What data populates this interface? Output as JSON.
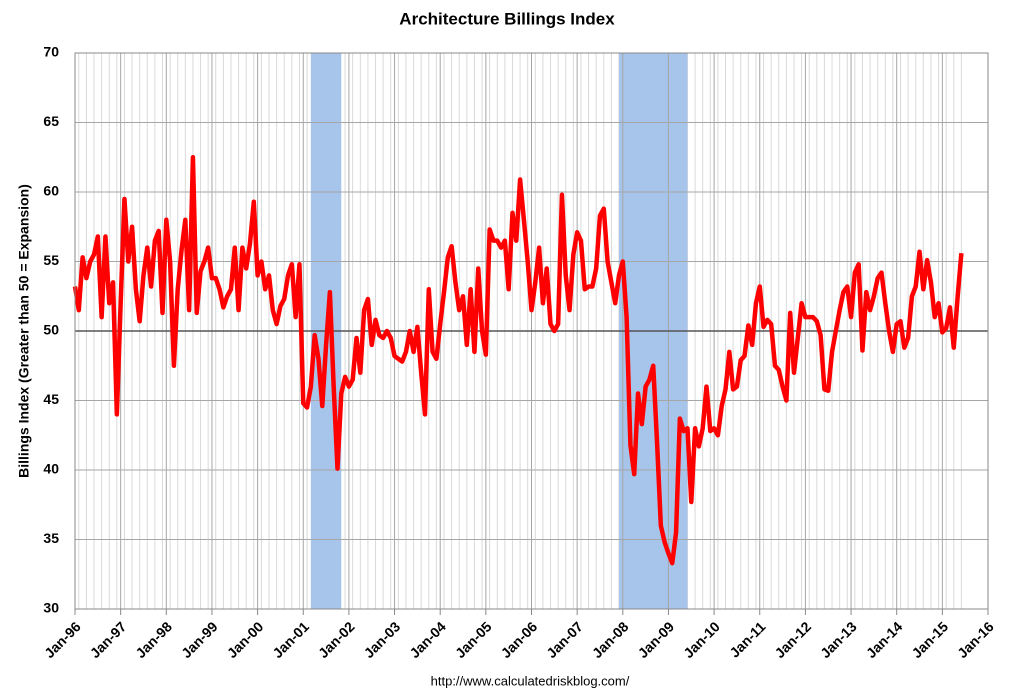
{
  "chart_data": {
    "type": "line",
    "title": "Architecture Billings Index",
    "y_label": "Billings Index (Greater than 50 = Expansion)",
    "source": "http://www.calculatedriskblog.com/",
    "x": [
      "1996-01",
      "1996-02",
      "1996-03",
      "1996-04",
      "1996-05",
      "1996-06",
      "1996-07",
      "1996-08",
      "1996-09",
      "1996-10",
      "1996-11",
      "1996-12",
      "1997-01",
      "1997-02",
      "1997-03",
      "1997-04",
      "1997-05",
      "1997-06",
      "1997-07",
      "1997-08",
      "1997-09",
      "1997-10",
      "1997-11",
      "1997-12",
      "1998-01",
      "1998-02",
      "1998-03",
      "1998-04",
      "1998-05",
      "1998-06",
      "1998-07",
      "1998-08",
      "1998-09",
      "1998-10",
      "1998-11",
      "1998-12",
      "1999-01",
      "1999-02",
      "1999-03",
      "1999-04",
      "1999-05",
      "1999-06",
      "1999-07",
      "1999-08",
      "1999-09",
      "1999-10",
      "1999-11",
      "1999-12",
      "2000-01",
      "2000-02",
      "2000-03",
      "2000-04",
      "2000-05",
      "2000-06",
      "2000-07",
      "2000-08",
      "2000-09",
      "2000-10",
      "2000-11",
      "2000-12",
      "2001-01",
      "2001-02",
      "2001-03",
      "2001-04",
      "2001-05",
      "2001-06",
      "2001-07",
      "2001-08",
      "2001-09",
      "2001-10",
      "2001-11",
      "2001-12",
      "2002-01",
      "2002-02",
      "2002-03",
      "2002-04",
      "2002-05",
      "2002-06",
      "2002-07",
      "2002-08",
      "2002-09",
      "2002-10",
      "2002-11",
      "2002-12",
      "2003-01",
      "2003-02",
      "2003-03",
      "2003-04",
      "2003-05",
      "2003-06",
      "2003-07",
      "2003-08",
      "2003-09",
      "2003-10",
      "2003-11",
      "2003-12",
      "2004-01",
      "2004-02",
      "2004-03",
      "2004-04",
      "2004-05",
      "2004-06",
      "2004-07",
      "2004-08",
      "2004-09",
      "2004-10",
      "2004-11",
      "2004-12",
      "2005-01",
      "2005-02",
      "2005-03",
      "2005-04",
      "2005-05",
      "2005-06",
      "2005-07",
      "2005-08",
      "2005-09",
      "2005-10",
      "2005-11",
      "2005-12",
      "2006-01",
      "2006-02",
      "2006-03",
      "2006-04",
      "2006-05",
      "2006-06",
      "2006-07",
      "2006-08",
      "2006-09",
      "2006-10",
      "2006-11",
      "2006-12",
      "2007-01",
      "2007-02",
      "2007-03",
      "2007-04",
      "2007-05",
      "2007-06",
      "2007-07",
      "2007-08",
      "2007-09",
      "2007-10",
      "2007-11",
      "2007-12",
      "2008-01",
      "2008-02",
      "2008-03",
      "2008-04",
      "2008-05",
      "2008-06",
      "2008-07",
      "2008-08",
      "2008-09",
      "2008-10",
      "2008-11",
      "2008-12",
      "2009-01",
      "2009-02",
      "2009-03",
      "2009-04",
      "2009-05",
      "2009-06",
      "2009-07",
      "2009-08",
      "2009-09",
      "2009-10",
      "2009-11",
      "2009-12",
      "2010-01",
      "2010-02",
      "2010-03",
      "2010-04",
      "2010-05",
      "2010-06",
      "2010-07",
      "2010-08",
      "2010-09",
      "2010-10",
      "2010-11",
      "2010-12",
      "2011-01",
      "2011-02",
      "2011-03",
      "2011-04",
      "2011-05",
      "2011-06",
      "2011-07",
      "2011-08",
      "2011-09",
      "2011-10",
      "2011-11",
      "2011-12",
      "2012-01",
      "2012-02",
      "2012-03",
      "2012-04",
      "2012-05",
      "2012-06",
      "2012-07",
      "2012-08",
      "2012-09",
      "2012-10",
      "2012-11",
      "2012-12",
      "2013-01",
      "2013-02",
      "2013-03",
      "2013-04",
      "2013-05",
      "2013-06",
      "2013-07",
      "2013-08",
      "2013-09",
      "2013-10",
      "2013-11",
      "2013-12",
      "2014-01",
      "2014-02",
      "2014-03",
      "2014-04",
      "2014-05",
      "2014-06",
      "2014-07",
      "2014-08",
      "2014-09",
      "2014-10",
      "2014-11",
      "2014-12",
      "2015-01",
      "2015-02",
      "2015-03",
      "2015-04",
      "2015-05",
      "2015-06"
    ],
    "series": [
      {
        "name": "Billings Index",
        "color": "#ff0000",
        "values": [
          53.2,
          51.5,
          55.3,
          53.8,
          55,
          55.5,
          56.8,
          51,
          56.8,
          52,
          53.5,
          44,
          52,
          59.5,
          55,
          57.5,
          53,
          50.7,
          54,
          56,
          53.2,
          56.5,
          57.2,
          51.3,
          58,
          55,
          47.5,
          53,
          55.8,
          58,
          51.5,
          62.5,
          51.3,
          54.3,
          55,
          56,
          53.8,
          53.8,
          53,
          51.7,
          52.5,
          53,
          56,
          51.5,
          56,
          54.5,
          56.3,
          59.3,
          54,
          55,
          53,
          54,
          51.5,
          50.5,
          51.8,
          52.3,
          54,
          54.8,
          51,
          54.8,
          44.8,
          44.5,
          46,
          49.7,
          48,
          44.6,
          49,
          52.8,
          46,
          40.1,
          45.5,
          46.7,
          46,
          46.5,
          49.5,
          47,
          51.5,
          52.3,
          49,
          50.8,
          49.7,
          49.5,
          50,
          49.5,
          48.2,
          48,
          47.8,
          48.5,
          50,
          48.5,
          50.3,
          47,
          44,
          53,
          48.5,
          48,
          50.5,
          52.8,
          55.3,
          56.1,
          53.5,
          51.5,
          52.5,
          49,
          53,
          48.5,
          54.5,
          50,
          48.3,
          57.3,
          56.5,
          56.5,
          56,
          56.5,
          53,
          58.5,
          56.5,
          60.9,
          58,
          55,
          51.5,
          53.5,
          56,
          52,
          54.5,
          50.5,
          50,
          50.5,
          59.8,
          54,
          51.5,
          55.5,
          57.1,
          56.5,
          53,
          53.2,
          53.2,
          54.5,
          58.3,
          58.8,
          55,
          53.5,
          52,
          54,
          55,
          51,
          41.8,
          39.7,
          45.5,
          43.3,
          46,
          46.5,
          47.5,
          42,
          36,
          34.8,
          34,
          33.3,
          35.5,
          43.7,
          42.8,
          43,
          37.7,
          43,
          41.7,
          43,
          46,
          42.8,
          43,
          42.5,
          44.6,
          45.8,
          48.5,
          45.8,
          46,
          47.9,
          48.2,
          50.4,
          49,
          52,
          53.2,
          50.3,
          50.8,
          50.5,
          47.5,
          47.2,
          46,
          45,
          51.3,
          47,
          49.5,
          52,
          51,
          51,
          51,
          50.7,
          49.7,
          45.8,
          45.7,
          48.5,
          50,
          51.5,
          52.8,
          53.2,
          51,
          54.2,
          54.8,
          48.6,
          52.8,
          51.5,
          52.5,
          53.8,
          54.2,
          52,
          50,
          48.5,
          50.5,
          50.7,
          48.8,
          49.5,
          52.5,
          53.2,
          55.7,
          53,
          55.1,
          53.5,
          51,
          52,
          49.9,
          50.2,
          51.7,
          48.8,
          52.4,
          55.6
        ]
      }
    ],
    "recessions": [
      [
        "2001-03",
        "2001-11"
      ],
      [
        "2007-12",
        "2009-06"
      ]
    ],
    "recession_color": "#a7c4eb",
    "reference_line": 50,
    "xlim": [
      "1996-01",
      "2016-01"
    ],
    "xticks": [
      {
        "value": "1996-01",
        "label": "Jan-96"
      },
      {
        "value": "1997-01",
        "label": "Jan-97"
      },
      {
        "value": "1998-01",
        "label": "Jan-98"
      },
      {
        "value": "1999-01",
        "label": "Jan-99"
      },
      {
        "value": "2000-01",
        "label": "Jan-00"
      },
      {
        "value": "2001-01",
        "label": "Jan-01"
      },
      {
        "value": "2002-01",
        "label": "Jan-02"
      },
      {
        "value": "2003-01",
        "label": "Jan-03"
      },
      {
        "value": "2004-01",
        "label": "Jan-04"
      },
      {
        "value": "2005-01",
        "label": "Jan-05"
      },
      {
        "value": "2006-01",
        "label": "Jan-06"
      },
      {
        "value": "2007-01",
        "label": "Jan-07"
      },
      {
        "value": "2008-01",
        "label": "Jan-08"
      },
      {
        "value": "2009-01",
        "label": "Jan-09"
      },
      {
        "value": "2010-01",
        "label": "Jan-10"
      },
      {
        "value": "2011-01",
        "label": "Jan-11"
      },
      {
        "value": "2012-01",
        "label": "Jan-12"
      },
      {
        "value": "2013-01",
        "label": "Jan-13"
      },
      {
        "value": "2014-01",
        "label": "Jan-14"
      },
      {
        "value": "2015-01",
        "label": "Jan-15"
      },
      {
        "value": "2016-01",
        "label": "Jan-16"
      }
    ],
    "ylim": [
      30,
      70
    ],
    "yticks": [
      30,
      35,
      40,
      45,
      50,
      55,
      60,
      65,
      70
    ],
    "grid": true
  }
}
